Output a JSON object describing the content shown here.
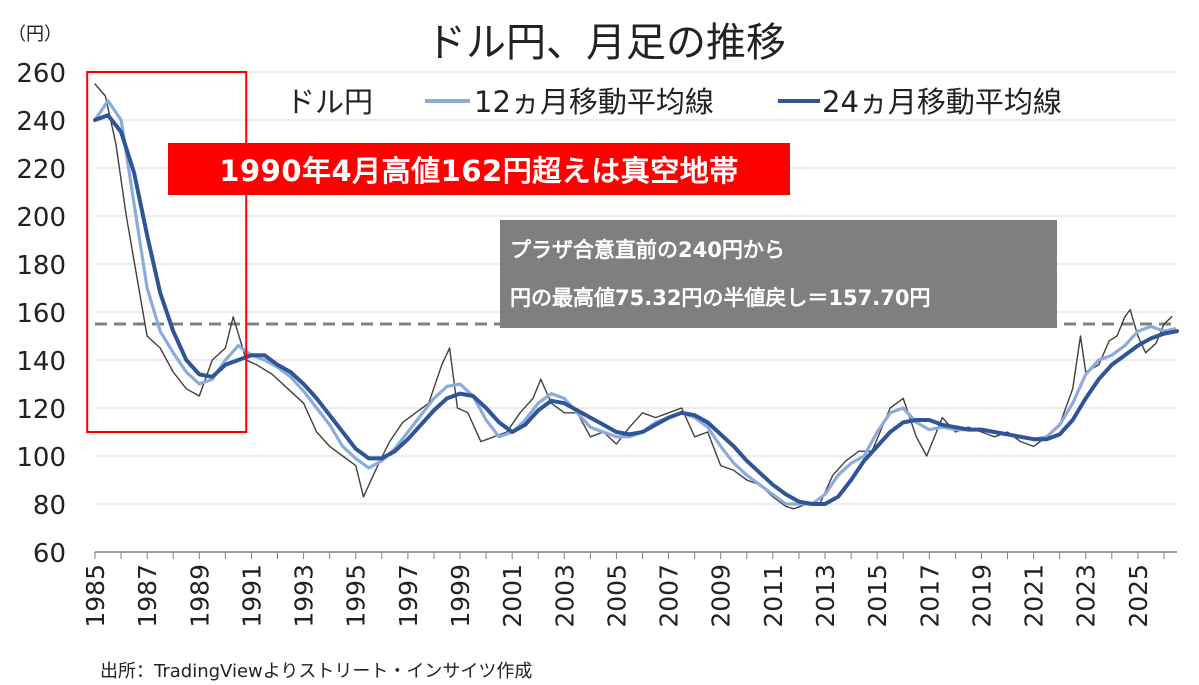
{
  "chart_data": {
    "type": "line",
    "title": "ドル円、月足の推移",
    "unit_label": "（円）",
    "source": "出所：TradingViewよりストリート・インサイツ作成",
    "ylim": [
      60,
      260
    ],
    "yticks": [
      60,
      80,
      100,
      120,
      140,
      160,
      180,
      200,
      220,
      240,
      260
    ],
    "xlim": [
      1985,
      2026.5
    ],
    "xticks": [
      "1985",
      "1987",
      "1989",
      "1991",
      "1993",
      "1995",
      "1997",
      "1999",
      "2001",
      "2003",
      "2005",
      "2007",
      "2009",
      "2011",
      "2013",
      "2015",
      "2017",
      "2019",
      "2021",
      "2023",
      "2025"
    ],
    "grid": true,
    "legend": [
      {
        "name": "ドル円",
        "color": "#404040"
      },
      {
        "name": "12ヵ月移動平均線",
        "color": "#8eaadb"
      },
      {
        "name": "24ヵ月移動平均線",
        "color": "#2f5597"
      }
    ],
    "reference_line": {
      "value": 155,
      "color": "#808080",
      "style": "dashed"
    },
    "highlight_box": {
      "x": [
        1984.7,
        1990.8
      ],
      "y": [
        110,
        260
      ],
      "color": "#ff0000"
    },
    "annotations": {
      "red_box": "1990年4月高値162円超えは真空地帯",
      "gray_box_line1": "プラザ合意直前の240円から",
      "gray_box_line2": "円の最高値75.32円の半値戻し＝157.70円"
    },
    "series": [
      {
        "name": "ドル円",
        "color": "#404040",
        "x": [
          1985.0,
          1985.4,
          1985.8,
          1986.2,
          1986.6,
          1987.0,
          1987.5,
          1988.0,
          1988.5,
          1989.0,
          1989.5,
          1990.0,
          1990.3,
          1990.8,
          1991.2,
          1991.8,
          1992.5,
          1993.0,
          1993.5,
          1994.0,
          1994.5,
          1995.0,
          1995.3,
          1995.8,
          1996.3,
          1996.8,
          1997.3,
          1997.8,
          1998.3,
          1998.6,
          1998.9,
          1999.3,
          1999.8,
          2000.3,
          2000.8,
          2001.3,
          2001.8,
          2002.1,
          2002.5,
          2003.0,
          2003.5,
          2004.0,
          2004.5,
          2005.0,
          2005.5,
          2006.0,
          2006.5,
          2007.0,
          2007.5,
          2008.0,
          2008.5,
          2009.0,
          2009.5,
          2010.0,
          2010.5,
          2011.0,
          2011.5,
          2011.8,
          2012.3,
          2012.8,
          2013.3,
          2013.8,
          2014.3,
          2014.8,
          2015.5,
          2016.0,
          2016.5,
          2016.9,
          2017.5,
          2018.0,
          2018.5,
          2019.0,
          2019.5,
          2020.0,
          2020.5,
          2021.0,
          2021.5,
          2022.0,
          2022.5,
          2022.8,
          2023.0,
          2023.5,
          2023.9,
          2024.2,
          2024.5,
          2024.7,
          2025.0,
          2025.3,
          2025.7,
          2026.0,
          2026.3
        ],
        "y": [
          255,
          250,
          230,
          200,
          175,
          150,
          145,
          135,
          128,
          125,
          140,
          145,
          158,
          140,
          138,
          134,
          127,
          122,
          110,
          104,
          100,
          96,
          83,
          95,
          106,
          114,
          118,
          122,
          138,
          145,
          120,
          118,
          106,
          108,
          110,
          118,
          124,
          132,
          122,
          118,
          118,
          108,
          110,
          105,
          112,
          118,
          116,
          118,
          120,
          108,
          110,
          96,
          94,
          90,
          88,
          83,
          79,
          78,
          80,
          80,
          92,
          98,
          102,
          102,
          120,
          124,
          108,
          100,
          116,
          110,
          112,
          110,
          108,
          110,
          106,
          104,
          108,
          113,
          128,
          150,
          135,
          138,
          148,
          150,
          158,
          161,
          150,
          143,
          147,
          155,
          158
        ]
      },
      {
        "name": "12ヵ月移動平均線",
        "color": "#8eaadb",
        "x": [
          1985.0,
          1985.5,
          1986.0,
          1986.5,
          1987.0,
          1987.5,
          1988.0,
          1988.5,
          1989.0,
          1989.5,
          1990.0,
          1990.5,
          1991.0,
          1991.5,
          1992.0,
          1992.5,
          1993.0,
          1993.5,
          1994.0,
          1994.5,
          1995.0,
          1995.5,
          1996.0,
          1996.5,
          1997.0,
          1997.5,
          1998.0,
          1998.5,
          1999.0,
          1999.5,
          2000.0,
          2000.5,
          2001.0,
          2001.5,
          2002.0,
          2002.5,
          2003.0,
          2003.5,
          2004.0,
          2004.5,
          2005.0,
          2005.5,
          2006.0,
          2006.5,
          2007.0,
          2007.5,
          2008.0,
          2008.5,
          2009.0,
          2009.5,
          2010.0,
          2010.5,
          2011.0,
          2011.5,
          2012.0,
          2012.5,
          2013.0,
          2013.5,
          2014.0,
          2014.5,
          2015.0,
          2015.5,
          2016.0,
          2016.5,
          2017.0,
          2017.5,
          2018.0,
          2018.5,
          2019.0,
          2019.5,
          2020.0,
          2020.5,
          2021.0,
          2021.5,
          2022.0,
          2022.5,
          2023.0,
          2023.5,
          2024.0,
          2024.5,
          2025.0,
          2025.5,
          2026.0,
          2026.4
        ],
        "y": [
          240,
          248,
          240,
          205,
          170,
          152,
          143,
          135,
          130,
          132,
          140,
          146,
          142,
          140,
          137,
          133,
          127,
          120,
          113,
          104,
          99,
          95,
          98,
          103,
          110,
          117,
          124,
          129,
          130,
          125,
          115,
          108,
          110,
          115,
          122,
          126,
          124,
          118,
          112,
          110,
          108,
          108,
          110,
          114,
          116,
          118,
          116,
          112,
          104,
          97,
          92,
          88,
          84,
          80,
          80,
          80,
          84,
          92,
          97,
          100,
          110,
          118,
          120,
          114,
          111,
          112,
          111,
          111,
          111,
          110,
          109,
          108,
          107,
          108,
          113,
          122,
          134,
          140,
          142,
          146,
          152,
          154,
          152,
          153
        ]
      },
      {
        "name": "24ヵ月移動平均線",
        "color": "#2f5597",
        "x": [
          1985.0,
          1985.5,
          1986.0,
          1986.5,
          1987.0,
          1987.5,
          1988.0,
          1988.5,
          1989.0,
          1989.5,
          1990.0,
          1990.5,
          1991.0,
          1991.5,
          1992.0,
          1992.5,
          1993.0,
          1993.5,
          1994.0,
          1994.5,
          1995.0,
          1995.5,
          1996.0,
          1996.5,
          1997.0,
          1997.5,
          1998.0,
          1998.5,
          1999.0,
          1999.5,
          2000.0,
          2000.5,
          2001.0,
          2001.5,
          2002.0,
          2002.5,
          2003.0,
          2003.5,
          2004.0,
          2004.5,
          2005.0,
          2005.5,
          2006.0,
          2006.5,
          2007.0,
          2007.5,
          2008.0,
          2008.5,
          2009.0,
          2009.5,
          2010.0,
          2010.5,
          2011.0,
          2011.5,
          2012.0,
          2012.5,
          2013.0,
          2013.5,
          2014.0,
          2014.5,
          2015.0,
          2015.5,
          2016.0,
          2016.5,
          2017.0,
          2017.5,
          2018.0,
          2018.5,
          2019.0,
          2019.5,
          2020.0,
          2020.5,
          2021.0,
          2021.5,
          2022.0,
          2022.5,
          2023.0,
          2023.5,
          2024.0,
          2024.5,
          2025.0,
          2025.5,
          2026.0,
          2026.5
        ],
        "y": [
          240,
          242,
          235,
          218,
          192,
          168,
          152,
          140,
          134,
          133,
          138,
          140,
          142,
          142,
          138,
          135,
          130,
          124,
          117,
          110,
          103,
          99,
          99,
          102,
          107,
          113,
          119,
          124,
          126,
          125,
          120,
          114,
          110,
          113,
          119,
          123,
          122,
          119,
          116,
          113,
          110,
          109,
          110,
          113,
          116,
          118,
          117,
          114,
          109,
          104,
          98,
          93,
          88,
          84,
          81,
          80,
          80,
          83,
          90,
          98,
          104,
          110,
          114,
          115,
          115,
          113,
          112,
          111,
          111,
          110,
          109,
          108,
          107,
          107,
          109,
          115,
          124,
          132,
          138,
          142,
          146,
          149,
          151,
          152
        ]
      }
    ]
  }
}
